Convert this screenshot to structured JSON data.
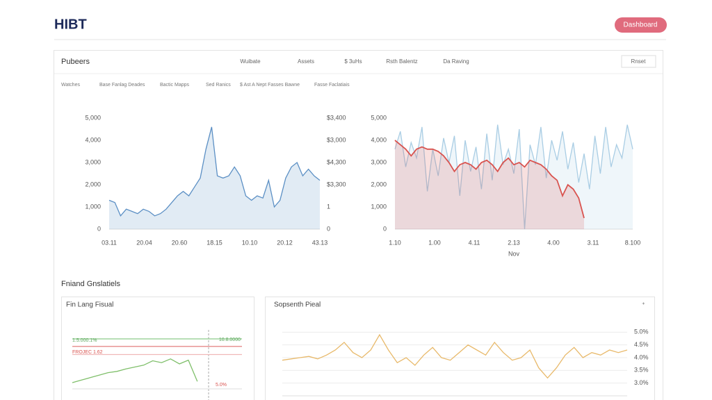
{
  "header": {
    "logo": "HIBT",
    "button": "Dashboard"
  },
  "panel": {
    "title": "Pubeers",
    "filters": [
      "Wuibate",
      "Assets",
      "$ 3uHs",
      "Rsth Balentz",
      "Da Raving"
    ],
    "action": "Rnset",
    "breadcrumbs": [
      "Watches",
      "Base Fanlag Deades",
      "Bactic Mapps",
      "Sed Ranics",
      "$ Ast A Nept Fasses Bawne",
      "Fasse Faclatiais"
    ]
  },
  "charts": [
    {
      "type": "line",
      "ylim": [
        0,
        5000
      ],
      "yticks": [
        0,
        {
          "value": 1000,
          "label": "1,000"
        },
        {
          "value": 2000,
          "label": "2,000"
        },
        {
          "value": 3000,
          "label": "3,000"
        },
        {
          "value": 4000,
          "label": "4,000"
        },
        {
          "value": 5000,
          "label": "5,000"
        }
      ],
      "y2ticks": [
        0,
        {
          "value": 1000,
          "label": "1"
        },
        {
          "value": 2000,
          "label": "$3,300"
        },
        {
          "value": 3000,
          "label": "$4,300"
        },
        {
          "value": 4000,
          "label": "$3,000"
        },
        {
          "value": 5000,
          "label": "$3,400"
        }
      ],
      "x_labels": [
        "03.11",
        "20.04",
        "20.60",
        "18.15",
        "10.10",
        "20.12",
        "43.13"
      ],
      "area": true,
      "series": [
        {
          "color": "#5b8fc4",
          "values": [
            1300,
            1200,
            600,
            900,
            800,
            700,
            900,
            800,
            600,
            700,
            900,
            1200,
            1500,
            1700,
            1500,
            1900,
            2300,
            3600,
            4600,
            2400,
            2300,
            2400,
            2800,
            2400,
            1500,
            1300,
            1500,
            1400,
            2200,
            1000,
            1300,
            2300,
            2800,
            3000,
            2400,
            2700,
            2400,
            2200
          ]
        }
      ]
    },
    {
      "type": "line",
      "ylim": [
        0,
        5000
      ],
      "yticks": [
        0,
        {
          "value": 1000,
          "label": "1,000"
        },
        {
          "value": 2000,
          "label": "2,000"
        },
        {
          "value": 3000,
          "label": "3,000"
        },
        {
          "value": 4000,
          "label": "4,000"
        },
        {
          "value": 5000,
          "label": "5,000"
        }
      ],
      "x_labels": [
        "1.10",
        "1.00",
        "4.11",
        "2.13",
        "4.00",
        "3.11",
        "8.100"
      ],
      "x_axis_label": "Nov",
      "area": true,
      "series": [
        {
          "color": "#a9cde4",
          "values": [
            3600,
            4400,
            2800,
            3900,
            3200,
            4600,
            1700,
            3600,
            2400,
            4100,
            3000,
            4200,
            1500,
            4000,
            2600,
            3700,
            1800,
            4300,
            2200,
            4700,
            2900,
            3600,
            2500,
            4500,
            0,
            3800,
            2900,
            4600,
            2300,
            4000,
            3100,
            4400,
            2700,
            3900,
            2100,
            3400,
            1800,
            4200,
            2500,
            4600,
            2800,
            3800,
            3200,
            4700,
            3600
          ]
        },
        {
          "color": "#d9534f",
          "values": [
            4000,
            3800,
            3600,
            3300,
            3600,
            3700,
            3600,
            3600,
            3500,
            3300,
            3000,
            2600,
            2900,
            3000,
            2900,
            2700,
            3000,
            3100,
            2900,
            2600,
            3000,
            3200,
            2900,
            3000,
            2800,
            3100,
            3000,
            2900,
            2700,
            2400,
            2200,
            1500,
            2000,
            1800,
            1400,
            500,
            null,
            null,
            null,
            null,
            null,
            null,
            null,
            null,
            null
          ]
        }
      ]
    }
  ],
  "section": {
    "title": "Fniand Gnslatiels"
  },
  "bottom": [
    {
      "title": "Fin Lang Fisual",
      "chart": {
        "type": "line",
        "ylim": [
          0,
          100
        ],
        "annotations": [
          "1.5.000.1%",
          "10.8.0000",
          "FROJEC 1.62",
          "5.0%"
        ],
        "area": false,
        "series": [
          {
            "color": "#8cc98a",
            "values": [
              80,
              80
            ]
          },
          {
            "color": "#e58a8a",
            "values": [
              68,
              68
            ]
          },
          {
            "color": "#f0b8b8",
            "values": [
              55,
              55
            ]
          },
          {
            "color": "#7fbf6a",
            "values": [
              10,
              14,
              18,
              22,
              26,
              28,
              32,
              35,
              38,
              45,
              42,
              48,
              40,
              46,
              12,
              null,
              null,
              null,
              null,
              null
            ]
          }
        ]
      }
    },
    {
      "title": "Sopsenth Pieal",
      "chart": {
        "type": "line",
        "ylim": [
          2.5,
          5.5
        ],
        "y2ticks": [
          {
            "value": 5,
            "label": "5.0%"
          },
          {
            "value": 4.5,
            "label": "4.5%"
          },
          {
            "value": 4,
            "label": "4.0%"
          },
          {
            "value": 3.5,
            "label": "3.5%"
          },
          {
            "value": 3,
            "label": "3.0%"
          }
        ],
        "grid": true,
        "area": false,
        "series": [
          {
            "color": "#e8b96a",
            "values": [
              3.9,
              3.95,
              4.0,
              4.05,
              3.95,
              4.1,
              4.3,
              4.6,
              4.2,
              4.0,
              4.3,
              4.9,
              4.3,
              3.8,
              4.0,
              3.7,
              4.1,
              4.4,
              4.0,
              3.9,
              4.2,
              4.5,
              4.3,
              4.1,
              4.6,
              4.2,
              3.9,
              4.0,
              4.3,
              3.6,
              3.2,
              3.6,
              4.1,
              4.4,
              4.0,
              4.2,
              4.1,
              4.3,
              4.2,
              4.3
            ]
          }
        ]
      }
    }
  ]
}
